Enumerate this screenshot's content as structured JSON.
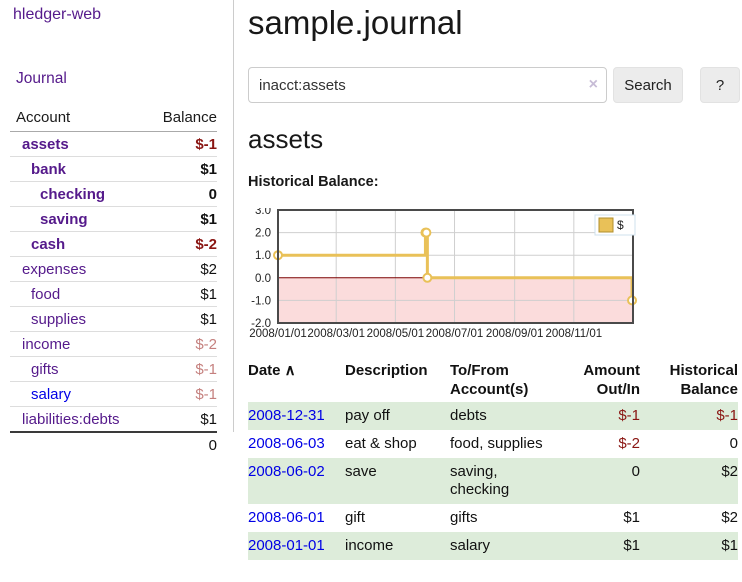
{
  "app": {
    "brand": "hledger-web",
    "nav_journal": "Journal"
  },
  "sidebar": {
    "accounts_header": {
      "account": "Account",
      "balance": "Balance"
    },
    "accounts": [
      {
        "name": "assets",
        "depth": 0,
        "bold": true,
        "name_color": "purple",
        "balance": "$-1",
        "balance_style": "negstrong"
      },
      {
        "name": "bank",
        "depth": 1,
        "bold": true,
        "name_color": "purple",
        "balance": "$1",
        "balance_style": "strong"
      },
      {
        "name": "checking",
        "depth": 2,
        "bold": true,
        "name_color": "purple",
        "balance": "0",
        "balance_style": "strong"
      },
      {
        "name": "saving",
        "depth": 2,
        "bold": true,
        "name_color": "purple",
        "balance": "$1",
        "balance_style": "strong"
      },
      {
        "name": "cash",
        "depth": 1,
        "bold": true,
        "name_color": "purple",
        "balance": "$-2",
        "balance_style": "negstrong"
      },
      {
        "name": "expenses",
        "depth": 0,
        "bold": false,
        "name_color": "purple",
        "balance": "$2",
        "balance_style": "normal"
      },
      {
        "name": "food",
        "depth": 1,
        "bold": false,
        "name_color": "purple",
        "balance": "$1",
        "balance_style": "normal"
      },
      {
        "name": "supplies",
        "depth": 1,
        "bold": false,
        "name_color": "purple",
        "balance": "$1",
        "balance_style": "normal"
      },
      {
        "name": "income",
        "depth": 0,
        "bold": false,
        "name_color": "purple",
        "balance": "$-2",
        "balance_style": "negmuted"
      },
      {
        "name": "gifts",
        "depth": 1,
        "bold": false,
        "name_color": "purple",
        "balance": "$-1",
        "balance_style": "negmuted"
      },
      {
        "name": "salary",
        "depth": 1,
        "bold": false,
        "name_color": "blue",
        "balance": "$-1",
        "balance_style": "negmuted"
      },
      {
        "name": "liabilities:debts",
        "depth": 0,
        "bold": false,
        "name_color": "purple",
        "balance": "$1",
        "balance_style": "normal"
      }
    ],
    "total": "0"
  },
  "header": {
    "title": "sample.journal"
  },
  "search": {
    "value": "inacct:assets",
    "clear_icon": "×",
    "button": "Search",
    "help_button": "?"
  },
  "main": {
    "heading": "assets",
    "chart_label": "Historical Balance:"
  },
  "chart_data": {
    "type": "line",
    "step": "after",
    "title": "Historical Balance:",
    "series": [
      {
        "name": "$",
        "points": [
          {
            "date": "2008-01-01",
            "value": 1
          },
          {
            "date": "2008-06-01",
            "value": 2
          },
          {
            "date": "2008-06-02",
            "value": 2
          },
          {
            "date": "2008-06-03",
            "value": 0
          },
          {
            "date": "2008-12-31",
            "value": -1
          }
        ]
      }
    ],
    "x_range": [
      "2008-01-01",
      "2009-01-01"
    ],
    "x_ticks": [
      "2008/01/01",
      "2008/03/01",
      "2008/05/01",
      "2008/07/01",
      "2008/09/01",
      "2008/11/01"
    ],
    "y_ticks": [
      3.0,
      2.0,
      1.0,
      0.0,
      -1.0,
      -2.0
    ],
    "ylim": [
      -2,
      3
    ],
    "grid": true,
    "legend": {
      "label": "$",
      "position": "top-right"
    },
    "line_color": "#e9c158",
    "negative_region_color": "#fbdcdc",
    "zero_line_color": "#7b0000"
  },
  "table": {
    "headers": [
      {
        "label": "Date",
        "sort_icon": "∧",
        "align": "left"
      },
      {
        "label": "Description",
        "align": "left"
      },
      {
        "label": "To/From Account(s)",
        "align": "left"
      },
      {
        "label": "Amount Out/In",
        "align": "right"
      },
      {
        "label": "Historical Balance",
        "align": "right"
      }
    ],
    "rows": [
      {
        "date": "2008-12-31",
        "description": "pay off",
        "accounts": "debts",
        "amount": "$-1",
        "amount_neg": true,
        "balance": "$-1",
        "balance_neg": true
      },
      {
        "date": "2008-06-03",
        "description": "eat & shop",
        "accounts": "food, supplies",
        "amount": "$-2",
        "amount_neg": true,
        "balance": "0",
        "balance_neg": false
      },
      {
        "date": "2008-06-02",
        "description": "save",
        "accounts": "saving, checking",
        "amount": "0",
        "amount_neg": false,
        "balance": "$2",
        "balance_neg": false
      },
      {
        "date": "2008-06-01",
        "description": "gift",
        "accounts": "gifts",
        "amount": "$1",
        "amount_neg": false,
        "balance": "$2",
        "balance_neg": false
      },
      {
        "date": "2008-01-01",
        "description": "income",
        "accounts": "salary",
        "amount": "$1",
        "amount_neg": false,
        "balance": "$1",
        "balance_neg": false
      }
    ]
  }
}
